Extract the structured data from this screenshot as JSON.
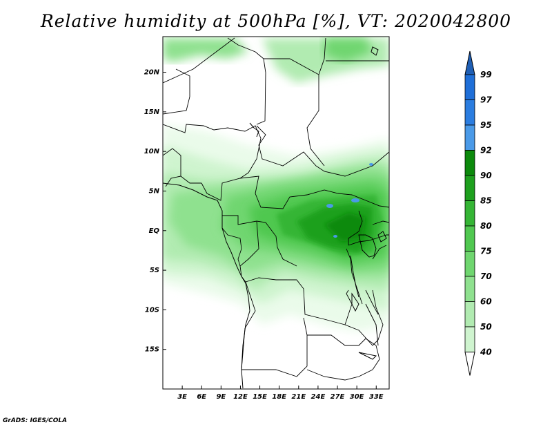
{
  "title": "Relative humidity at 500hPa [%], VT: 2020042800",
  "credit": "GrADS: IGES/COLA",
  "map": {
    "lat_labels": [
      "20N",
      "15N",
      "10N",
      "5N",
      "EQ",
      "5S",
      "10S",
      "15S"
    ],
    "lat_values": [
      20,
      15,
      10,
      5,
      0,
      -5,
      -10,
      -15
    ],
    "lon_labels": [
      "3E",
      "6E",
      "9E",
      "12E",
      "15E",
      "18E",
      "21E",
      "24E",
      "27E",
      "30E",
      "33E"
    ],
    "lon_values": [
      3,
      6,
      9,
      12,
      15,
      18,
      21,
      24,
      27,
      30,
      33
    ],
    "lon_range": [
      0,
      35
    ],
    "lat_range": [
      -20,
      24.5
    ]
  },
  "colorbar": {
    "levels": [
      "99",
      "97",
      "95",
      "92",
      "90",
      "85",
      "80",
      "75",
      "70",
      "60",
      "50",
      "40"
    ],
    "colors": [
      "#1f6fd8",
      "#2b7de0",
      "#4a9ae8",
      "#0c8a0c",
      "#1ea01e",
      "#35b535",
      "#50c850",
      "#6fd66f",
      "#8fe18f",
      "#b1ebb1",
      "#cff4cf",
      "#eafbea"
    ],
    "top_color": "#1f5fb5"
  }
}
